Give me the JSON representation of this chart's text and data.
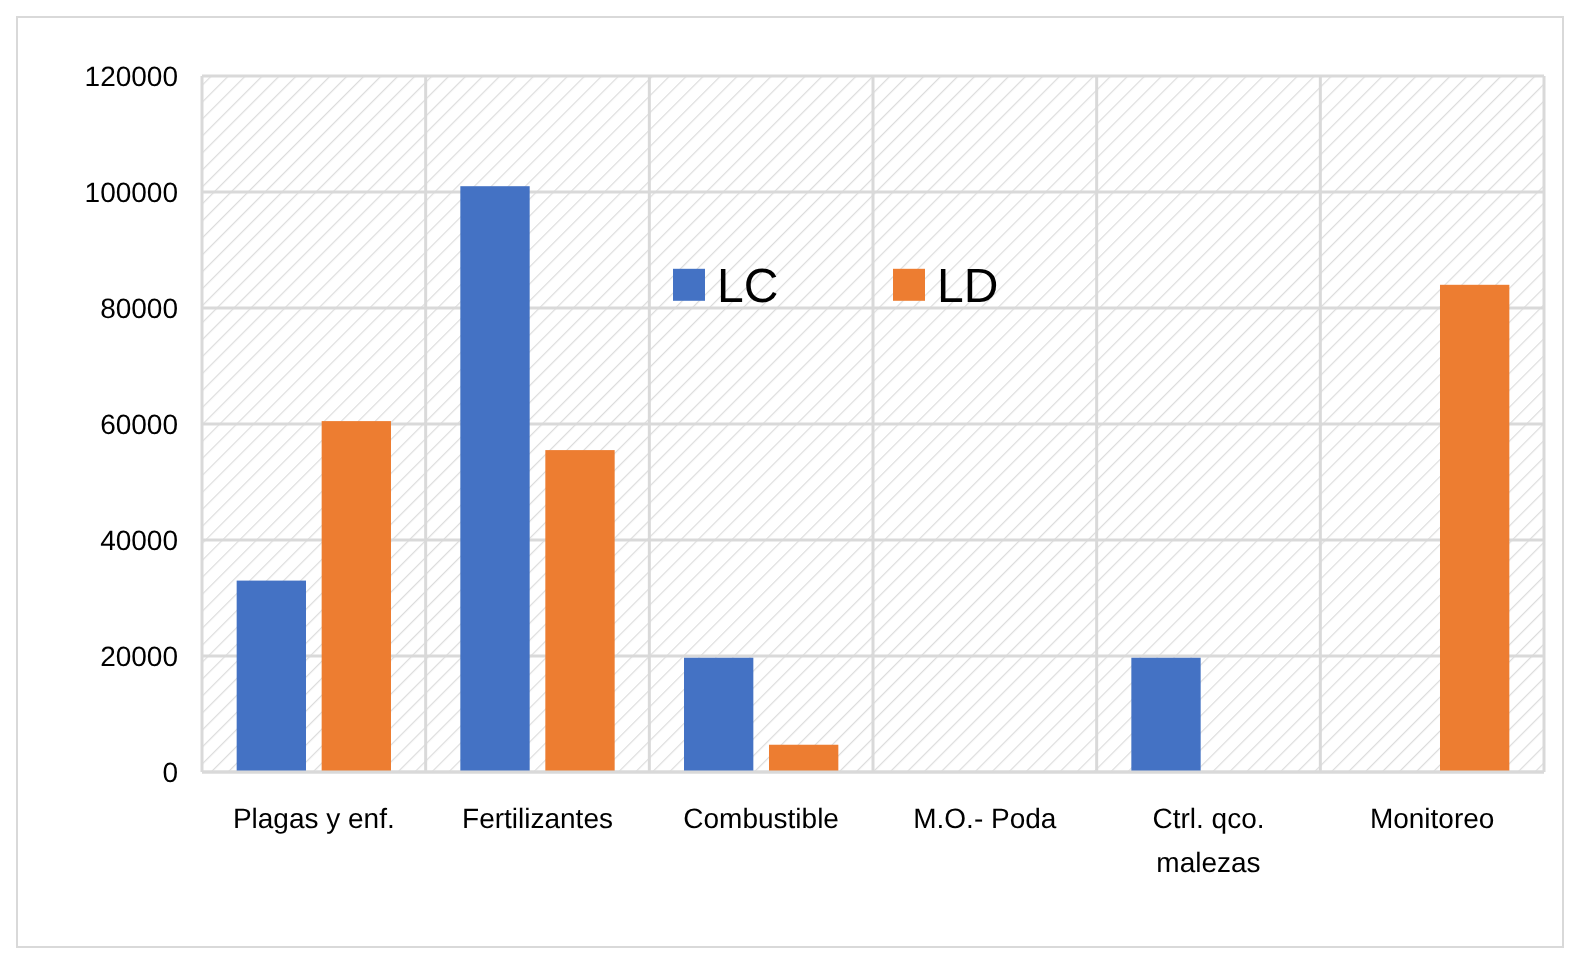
{
  "chart_data": {
    "type": "bar",
    "categories": [
      "Plagas y enf.",
      "Fertilizantes",
      "Combustible",
      "M.O.- Poda",
      "Ctrl. qco. malezas",
      "Monitoreo"
    ],
    "series": [
      {
        "name": "LC",
        "color": "#4472c4",
        "values": [
          33000,
          101000,
          19700,
          0,
          19700,
          0
        ]
      },
      {
        "name": "LD",
        "color": "#ed7d31",
        "values": [
          60500,
          55500,
          4700,
          0,
          0,
          84000
        ]
      }
    ],
    "ylim": [
      0,
      120000
    ],
    "yticks": [
      0,
      20000,
      40000,
      60000,
      80000,
      100000,
      120000
    ],
    "grid": true,
    "legend": "top"
  }
}
